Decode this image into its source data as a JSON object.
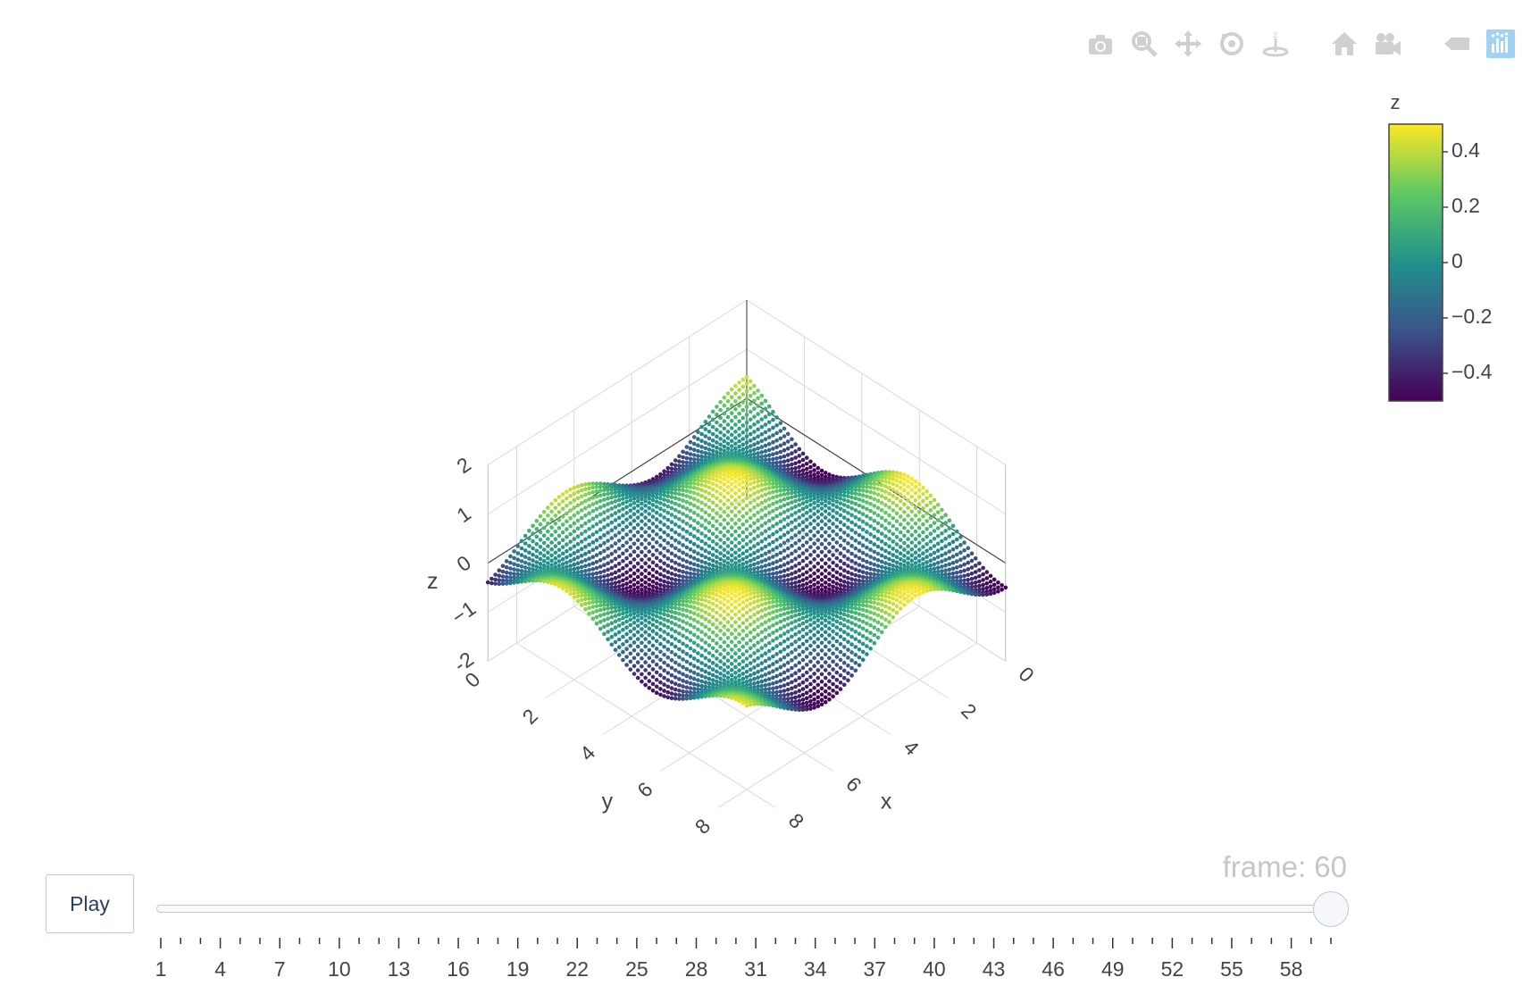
{
  "modebar": {
    "icons": [
      "camera-icon",
      "zoom-icon",
      "pan-icon",
      "orbit-rotation-icon",
      "turntable-rotation-icon",
      "reset-camera-icon",
      "camera-last-save-icon",
      "hover-toggle-icon",
      "plotly-logo-icon"
    ],
    "icon_color": "#d0d0d0",
    "logo_color": "#9fd2f4"
  },
  "chart_data": {
    "type": "scatter3d",
    "title": "",
    "surface_function": "z = sin(x + t) * cos(y) * 0.5, sampled on a 0..9 by 0..9 grid",
    "x_range": [
      0,
      9
    ],
    "y_range": [
      0,
      9
    ],
    "z_range": [
      -2,
      2
    ],
    "x_ticks": [
      "0",
      "2",
      "4",
      "6",
      "8"
    ],
    "y_ticks": [
      "0",
      "2",
      "4",
      "6",
      "8"
    ],
    "z_ticks": [
      "-2",
      "−1",
      "0",
      "1",
      "2"
    ],
    "xlabel": "x",
    "ylabel": "y",
    "zlabel": "z",
    "colorscale": "viridis",
    "colorbar": {
      "title": "z",
      "range": [
        -0.5,
        0.5
      ],
      "ticks": [
        "0.4",
        "0.2",
        "0",
        "−0.2",
        "−0.4"
      ],
      "tick_values": [
        0.4,
        0.2,
        0,
        -0.2,
        -0.4
      ]
    },
    "grid": true
  },
  "animation": {
    "play_label": "Play",
    "current_label": "frame: 60",
    "current_frame": 60,
    "frame_count": 60,
    "tick_labels": [
      "1",
      "4",
      "7",
      "10",
      "13",
      "16",
      "19",
      "22",
      "25",
      "28",
      "31",
      "34",
      "37",
      "40",
      "43",
      "46",
      "49",
      "52",
      "55",
      "58"
    ]
  }
}
